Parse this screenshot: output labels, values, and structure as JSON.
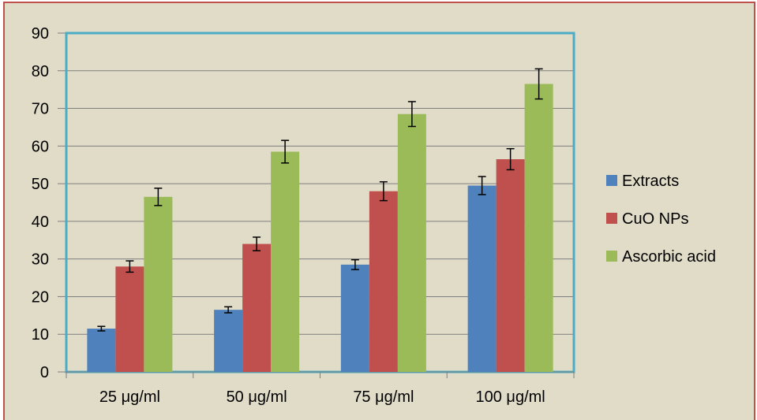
{
  "chart_data": {
    "type": "bar",
    "title": "",
    "xlabel": "",
    "ylabel": "",
    "ylim": [
      0,
      90
    ],
    "yticks": [
      0,
      10,
      20,
      30,
      40,
      50,
      60,
      70,
      80,
      90
    ],
    "grid": true,
    "legend_position": "right",
    "categories": [
      "25 μg/ml",
      "50 μg/ml",
      "75 μg/ml",
      "100 μg/ml"
    ],
    "series": [
      {
        "name": "Extracts",
        "color": "#4f81bd",
        "values": [
          11.5,
          16.5,
          28.5,
          49.5
        ],
        "errors": [
          0.6,
          0.8,
          1.3,
          2.4
        ]
      },
      {
        "name": "CuO NPs",
        "color": "#c0504d",
        "values": [
          28,
          34,
          48,
          56.5
        ],
        "errors": [
          1.5,
          1.8,
          2.5,
          2.8
        ]
      },
      {
        "name": "Ascorbic acid",
        "color": "#9bbb59",
        "values": [
          46.5,
          58.5,
          68.5,
          76.5
        ],
        "errors": [
          2.3,
          3.0,
          3.3,
          4.0
        ]
      }
    ],
    "colors": {
      "plot_border": "#4bacc6",
      "background": "#e0dcc8",
      "grid": "#7f7f7f",
      "outer_border": "#c0504d"
    }
  }
}
